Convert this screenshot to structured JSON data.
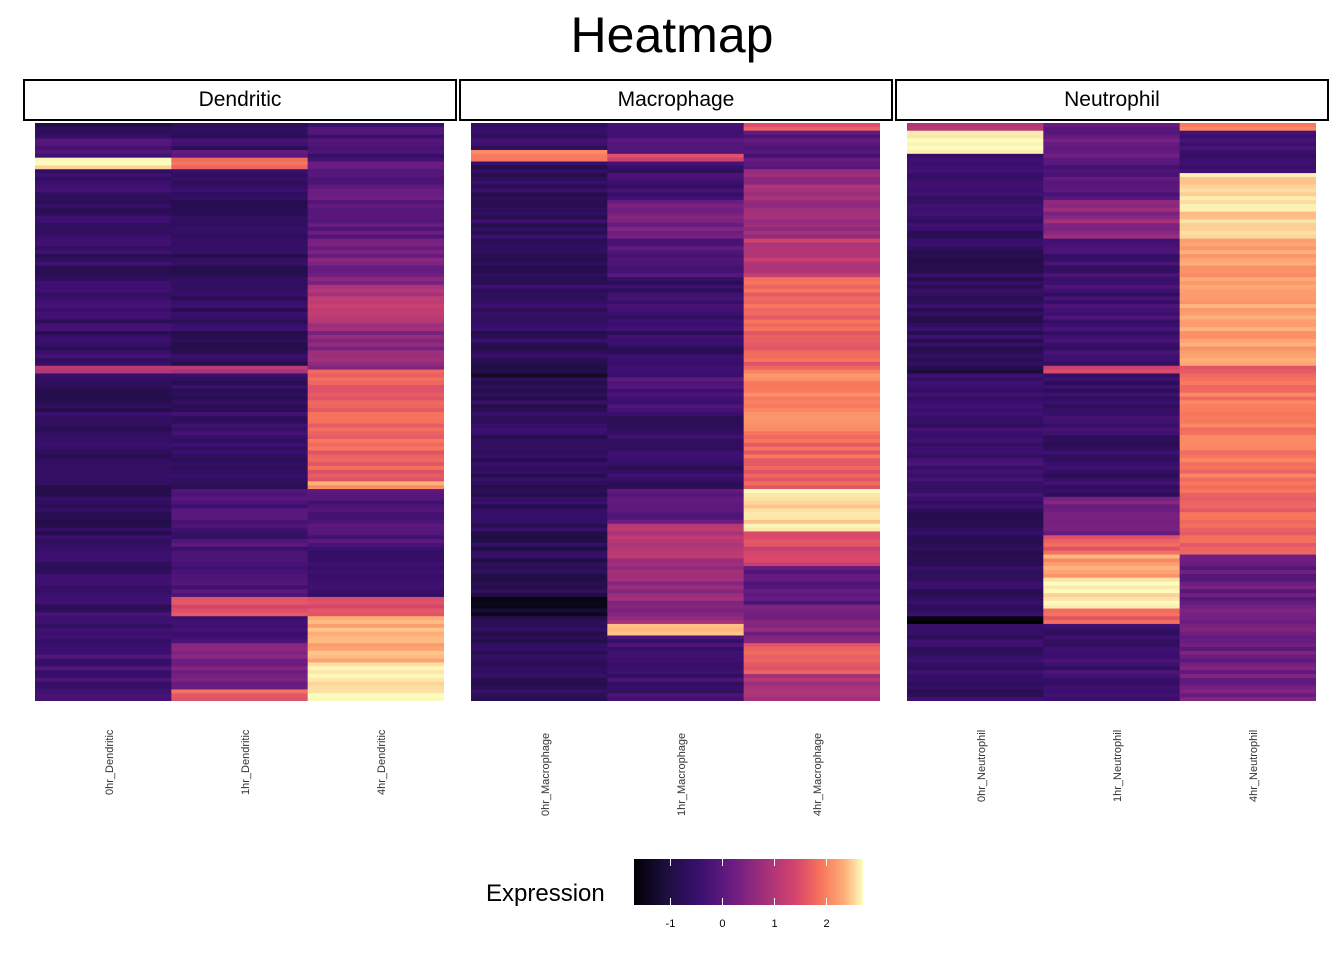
{
  "title": "Heatmap",
  "facets": [
    "Dendritic",
    "Macrophage",
    "Neutrophil"
  ],
  "columns": [
    [
      "0hr_Dendritic",
      "1hr_Dendritic",
      "4hr_Dendritic"
    ],
    [
      "0hr_Macrophage",
      "1hr_Macrophage",
      "4hr_Macrophage"
    ],
    [
      "0hr_Neutrophil",
      "1hr_Neutrophil",
      "4hr_Neutrophil"
    ]
  ],
  "legend": {
    "title": "Expression",
    "ticks": [
      "-1",
      "0",
      "1",
      "2"
    ],
    "tick_values": [
      -1,
      0,
      1,
      2
    ],
    "min": -1.7,
    "max": 2.7,
    "palette": [
      "#000004",
      "#1d0e3f",
      "#3b0f70",
      "#6a1c81",
      "#a2307b",
      "#d6456c",
      "#f8765c",
      "#feb078",
      "#fcfdbf"
    ]
  },
  "chart_data": {
    "type": "heatmap",
    "title": "Heatmap",
    "facets": [
      "Dendritic",
      "Macrophage",
      "Neutrophil"
    ],
    "legend_title": "Expression",
    "color_range": [
      -1.7,
      2.7
    ],
    "n_genes": 150,
    "bands": {
      "Dendritic": [
        [
          [
            0,
            3,
            -0.9
          ],
          [
            3,
            9,
            -0.5
          ],
          [
            9,
            12,
            2.5
          ],
          [
            12,
            63,
            -0.7
          ],
          [
            63,
            65,
            0.8
          ],
          [
            65,
            95,
            -0.8
          ],
          [
            95,
            107,
            -0.9
          ],
          [
            107,
            127,
            -0.7
          ],
          [
            127,
            137,
            -0.6
          ],
          [
            137,
            150,
            -0.5
          ]
        ],
        [
          [
            0,
            7,
            -0.7
          ],
          [
            7,
            9,
            -0.3
          ],
          [
            9,
            12,
            1.4
          ],
          [
            12,
            63,
            -0.8
          ],
          [
            63,
            65,
            0.6
          ],
          [
            65,
            95,
            -0.7
          ],
          [
            95,
            105,
            -0.4
          ],
          [
            105,
            108,
            -0.7
          ],
          [
            108,
            123,
            -0.4
          ],
          [
            123,
            128,
            1.2
          ],
          [
            128,
            135,
            -0.4
          ],
          [
            135,
            147,
            0.1
          ],
          [
            147,
            150,
            1.4
          ]
        ],
        [
          [
            0,
            10,
            -0.5
          ],
          [
            10,
            30,
            -0.2
          ],
          [
            30,
            42,
            0.1
          ],
          [
            42,
            52,
            0.7
          ],
          [
            52,
            64,
            0.3
          ],
          [
            64,
            93,
            1.4
          ],
          [
            93,
            95,
            2.0
          ],
          [
            95,
            110,
            -0.4
          ],
          [
            110,
            123,
            -0.6
          ],
          [
            123,
            128,
            1.2
          ],
          [
            128,
            140,
            2.1
          ],
          [
            140,
            150,
            2.6
          ]
        ]
      ],
      "Macrophage": [
        [
          [
            0,
            7,
            -0.7
          ],
          [
            7,
            10,
            1.7
          ],
          [
            10,
            63,
            -0.8
          ],
          [
            63,
            66,
            -1.2
          ],
          [
            66,
            95,
            -0.8
          ],
          [
            95,
            107,
            -0.8
          ],
          [
            107,
            123,
            -0.9
          ],
          [
            123,
            128,
            -1.4
          ],
          [
            128,
            150,
            -0.8
          ]
        ],
        [
          [
            0,
            8,
            -0.4
          ],
          [
            8,
            10,
            1.1
          ],
          [
            10,
            20,
            -0.6
          ],
          [
            20,
            30,
            0.0
          ],
          [
            30,
            40,
            -0.3
          ],
          [
            40,
            63,
            -0.7
          ],
          [
            63,
            75,
            -0.4
          ],
          [
            75,
            95,
            -0.7
          ],
          [
            95,
            104,
            -0.2
          ],
          [
            104,
            113,
            0.7
          ],
          [
            113,
            130,
            0.3
          ],
          [
            130,
            133,
            2.3
          ],
          [
            133,
            150,
            -0.6
          ]
        ],
        [
          [
            0,
            2,
            1.2
          ],
          [
            2,
            12,
            -0.3
          ],
          [
            12,
            30,
            0.4
          ],
          [
            30,
            40,
            0.8
          ],
          [
            40,
            64,
            1.4
          ],
          [
            64,
            80,
            1.8
          ],
          [
            80,
            95,
            1.4
          ],
          [
            95,
            106,
            2.5
          ],
          [
            106,
            115,
            1.1
          ],
          [
            115,
            125,
            -0.2
          ],
          [
            125,
            135,
            0.2
          ],
          [
            135,
            143,
            1.3
          ],
          [
            143,
            150,
            0.6
          ]
        ]
      ],
      "Neutrophil": [
        [
          [
            0,
            2,
            0.7
          ],
          [
            2,
            8,
            2.6
          ],
          [
            8,
            30,
            -0.7
          ],
          [
            30,
            63,
            -0.8
          ],
          [
            63,
            65,
            -1.2
          ],
          [
            65,
            100,
            -0.6
          ],
          [
            100,
            107,
            -0.8
          ],
          [
            107,
            128,
            -0.8
          ],
          [
            128,
            130,
            -1.6
          ],
          [
            130,
            150,
            -0.7
          ]
        ],
        [
          [
            0,
            9,
            -0.1
          ],
          [
            9,
            20,
            -0.3
          ],
          [
            20,
            30,
            0.3
          ],
          [
            30,
            63,
            -0.6
          ],
          [
            63,
            65,
            1.0
          ],
          [
            65,
            97,
            -0.7
          ],
          [
            97,
            107,
            0.1
          ],
          [
            107,
            112,
            1.4
          ],
          [
            112,
            118,
            2.0
          ],
          [
            118,
            126,
            2.6
          ],
          [
            126,
            130,
            1.4
          ],
          [
            130,
            150,
            -0.6
          ]
        ],
        [
          [
            0,
            2,
            1.6
          ],
          [
            2,
            13,
            -0.6
          ],
          [
            13,
            30,
            2.4
          ],
          [
            30,
            63,
            2.0
          ],
          [
            63,
            65,
            1.1
          ],
          [
            65,
            95,
            1.6
          ],
          [
            95,
            112,
            1.4
          ],
          [
            112,
            125,
            -0.1
          ],
          [
            125,
            150,
            0.0
          ]
        ]
      ]
    }
  }
}
